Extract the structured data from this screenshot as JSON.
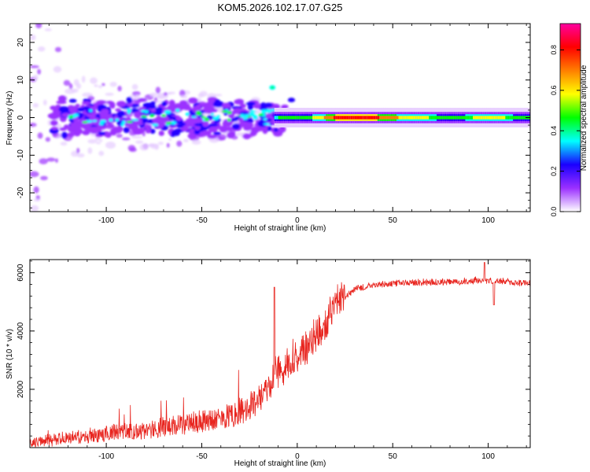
{
  "title": "KOM5.2026.102.17.07.G25",
  "chart_data": [
    {
      "type": "heatmap",
      "name": "spectrogram",
      "xlabel": "Height of straight line (km)",
      "ylabel": "Frequency (Hz)",
      "xlim": [
        -140,
        122
      ],
      "ylim": [
        -25,
        25
      ],
      "xticks": [
        -100,
        -50,
        0,
        50,
        100
      ],
      "yticks": [
        -20,
        -10,
        0,
        10,
        20
      ],
      "colorbar": {
        "label": "Normalized spectral amplitude",
        "range": [
          0,
          0.93
        ],
        "ticks": [
          "0.0",
          "0.2",
          "0.4",
          "0.6",
          "0.8"
        ],
        "colormap": [
          "#ffffff",
          "#9b30ff",
          "#1a00ff",
          "#00ffff",
          "#00ff00",
          "#ffff00",
          "#ff7f00",
          "#ff0000",
          "#ff00a0"
        ]
      },
      "ridge": [
        {
          "x": -115,
          "amp": 0.25
        },
        {
          "x": -100,
          "amp": 0.3
        },
        {
          "x": -80,
          "amp": 0.3
        },
        {
          "x": -60,
          "amp": 0.35
        },
        {
          "x": -40,
          "amp": 0.35
        },
        {
          "x": -20,
          "amp": 0.4
        },
        {
          "x": 0,
          "amp": 0.5
        },
        {
          "x": 10,
          "amp": 0.6
        },
        {
          "x": 20,
          "amp": 0.85
        },
        {
          "x": 40,
          "amp": 0.85
        },
        {
          "x": 60,
          "amp": 0.6
        },
        {
          "x": 80,
          "amp": 0.55
        },
        {
          "x": 100,
          "amp": 0.6
        },
        {
          "x": 120,
          "amp": 0.55
        }
      ]
    },
    {
      "type": "line",
      "name": "snr",
      "xlabel": "Height of straight line (km)",
      "ylabel": "SNR (10 * v/v)",
      "xlim": [
        -140,
        122
      ],
      "ylim": [
        0,
        6450
      ],
      "xticks": [
        -100,
        -50,
        0,
        50,
        100
      ],
      "yticks": [
        2000,
        4000,
        6000
      ],
      "color": "#e8251f",
      "series": [
        {
          "name": "SNR",
          "x": [
            -140,
            -120,
            -100,
            -80,
            -60,
            -40,
            -30,
            -20,
            -15,
            -10,
            -5,
            0,
            5,
            10,
            15,
            20,
            25,
            30,
            40,
            50,
            60,
            70,
            80,
            90,
            95,
            100,
            110,
            122
          ],
          "y": [
            100,
            250,
            400,
            500,
            700,
            900,
            1100,
            1500,
            1900,
            2500,
            2700,
            2900,
            3300,
            3700,
            4100,
            4700,
            5100,
            5400,
            5550,
            5600,
            5620,
            5640,
            5650,
            5670,
            5720,
            5700,
            5650,
            5600
          ]
        }
      ],
      "annotations": [
        {
          "x": -12,
          "y": 5500
        },
        {
          "x": 98,
          "y": 6350
        },
        {
          "x": 103,
          "y": 4900
        }
      ]
    }
  ]
}
